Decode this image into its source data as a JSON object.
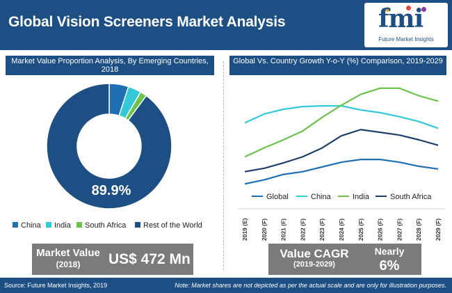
{
  "header": {
    "title": "Global Vision Screeners Market Analysis"
  },
  "logo": {
    "letters": "fmi",
    "tagline": "Future Market Insights"
  },
  "left_panel": {
    "title": "Market Value Proportion Analysis, By Emerging Countries, 2018"
  },
  "right_panel": {
    "title": "Global Vs. Country Growth Y-o-Y (%) Comparison, 2019-2029"
  },
  "colors": {
    "header": "#1e4f84",
    "china": "#1f6fb5",
    "india": "#33c9d8",
    "south_africa": "#6cc24a",
    "rest": "#1e4f84",
    "global": "#1f6fb5",
    "box": "#7b7b7b"
  },
  "chart_data": [
    {
      "type": "pie",
      "variant": "donut",
      "categories": [
        "China",
        "India",
        "South Africa",
        "Rest of the World"
      ],
      "values": [
        5.0,
        3.4,
        1.7,
        89.9
      ],
      "data_labels": [
        "",
        "",
        "",
        "89.9%"
      ],
      "colors": [
        "#1f6fb5",
        "#33c9d8",
        "#6cc24a",
        "#1e4f84"
      ],
      "legend": "bottom"
    },
    {
      "type": "line",
      "categories": [
        "2019 (E)",
        "2020 (F)",
        "2021 (F)",
        "2022 (F)",
        "2023 (F)",
        "2024 (F)",
        "2025 (F)",
        "2026 (F)",
        "2027 (F)",
        "2028 (F)",
        "2029 (F)"
      ],
      "series": [
        {
          "name": "Global",
          "values": [
            1.0,
            1.6,
            2.4,
            2.8,
            3.5,
            4.2,
            4.6,
            4.6,
            4.2,
            3.6,
            3.2
          ],
          "color": "#1f6fb5"
        },
        {
          "name": "China",
          "values": [
            10.0,
            11.3,
            12.0,
            12.4,
            12.5,
            12.5,
            11.9,
            11.5,
            10.9,
            10.2,
            9.2
          ],
          "color": "#33c9d8"
        },
        {
          "name": "India",
          "values": [
            5.0,
            6.3,
            7.5,
            8.8,
            10.8,
            12.6,
            14.2,
            15.1,
            15.1,
            14.0,
            13.2
          ],
          "color": "#6cc24a"
        },
        {
          "name": "South Africa",
          "values": [
            2.8,
            3.3,
            4.1,
            5.0,
            6.3,
            8.1,
            9.0,
            8.6,
            8.2,
            7.5,
            6.7
          ],
          "color": "#1e3f6b"
        }
      ],
      "ylim": [
        0,
        16
      ],
      "grid": false,
      "legend": "bottom"
    }
  ],
  "left_legend": [
    {
      "label": "China",
      "color": "#1f6fb5"
    },
    {
      "label": "India",
      "color": "#33c9d8"
    },
    {
      "label": "South Africa",
      "color": "#6cc24a"
    },
    {
      "label": "Rest of the World",
      "color": "#1e4f84"
    }
  ],
  "right_legend": [
    {
      "label": "Global",
      "color": "#1f6fb5"
    },
    {
      "label": "China",
      "color": "#33c9d8"
    },
    {
      "label": "India",
      "color": "#6cc24a"
    },
    {
      "label": "South Africa",
      "color": "#1e3f6b"
    }
  ],
  "market_value": {
    "label_line1": "Market  Value",
    "label_line2": "(2018)",
    "value": "US$ 472 Mn"
  },
  "cagr": {
    "label": "Value CAGR",
    "period": "(2019-2029)",
    "qualifier": "Nearly",
    "value": "6%"
  },
  "footer": {
    "source": "Source: Future Market Insights, 2019",
    "note": "Note: Market shares are not depicted as per the actual scale and are only for illustration purposes."
  }
}
